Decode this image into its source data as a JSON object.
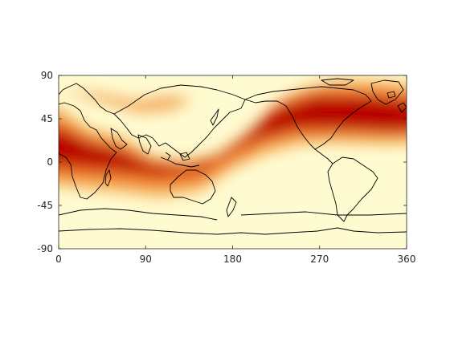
{
  "map": {
    "projection": "equirectangular",
    "colormap": "hot-reversed",
    "grid": false,
    "xlim": [
      0,
      360
    ],
    "ylim": [
      -90,
      90
    ],
    "x_ticks": [
      "0",
      "90",
      "180",
      "270",
      "360"
    ],
    "y_ticks": [
      "90",
      "45",
      "0",
      "-45",
      "-90"
    ],
    "colors": {
      "low": "#fffbd0",
      "mid": "#ee7722",
      "high": "#a80000",
      "frame": "#262626",
      "coastline": "#000000"
    }
  }
}
